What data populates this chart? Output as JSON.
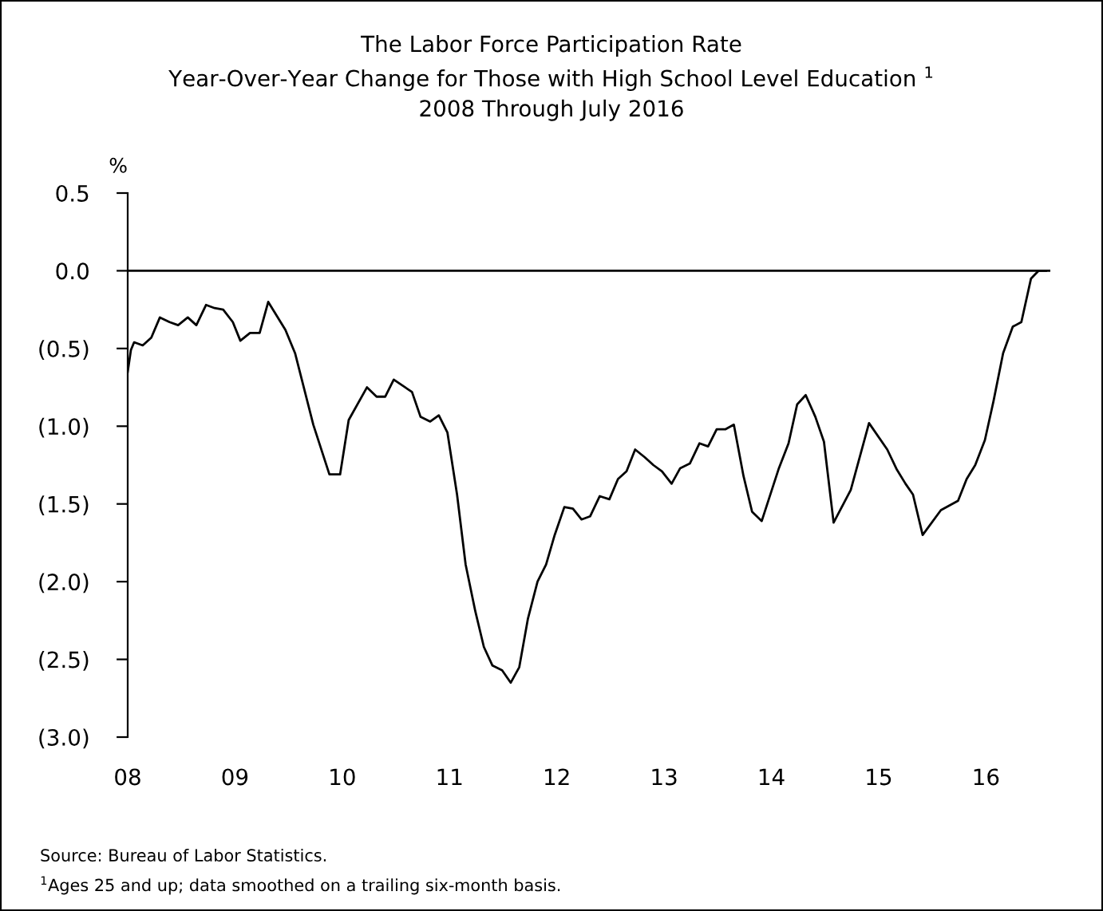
{
  "chart_data": {
    "type": "line",
    "title": "The Labor Force Participation Rate\nYear-Over-Year Change for Those with High School Level Education $^{1}$\n2008 Through July 2016",
    "ylabel": "%",
    "annotations": [
      "Source: Bureau of Labor Statistics.",
      "$^{1}$Ages 25 and up; data smoothed on a trailing six-month basis."
    ],
    "series": [
      {
        "color": "#000000",
        "x": [
          2008.0,
          2008.03,
          2008.06,
          2008.14,
          2008.22,
          2008.3,
          2008.39,
          2008.47,
          2008.56,
          2008.64,
          2008.73,
          2008.81,
          2008.89,
          2008.98,
          2009.05,
          2009.14,
          2009.23,
          2009.31,
          2009.47,
          2009.56,
          2009.73,
          2009.88,
          2009.98,
          2010.06,
          2010.23,
          2010.32,
          2010.4,
          2010.48,
          2010.65,
          2010.73,
          2010.82,
          2010.9,
          2010.98,
          2011.07,
          2011.15,
          2011.24,
          2011.32,
          2011.4,
          2011.49,
          2011.57,
          2011.65,
          2011.73,
          2011.82,
          2011.9,
          2011.98,
          2012.07,
          2012.15,
          2012.23,
          2012.31,
          2012.4,
          2012.49,
          2012.57,
          2012.65,
          2012.73,
          2012.82,
          2012.9,
          2012.98,
          2013.07,
          2013.15,
          2013.24,
          2013.33,
          2013.41,
          2013.49,
          2013.57,
          2013.65,
          2013.74,
          2013.82,
          2013.91,
          2014.07,
          2014.16,
          2014.24,
          2014.32,
          2014.41,
          2014.49,
          2014.58,
          2014.74,
          2014.91,
          2015.08,
          2015.17,
          2015.25,
          2015.32,
          2015.41,
          2015.58,
          2015.74,
          2015.82,
          2015.9,
          2015.99,
          2016.07,
          2016.16,
          2016.25,
          2016.33,
          2016.42,
          2016.49,
          2016.56
        ],
        "values": [
          -0.65,
          -0.51,
          -0.46,
          -0.48,
          -0.43,
          -0.3,
          -0.33,
          -0.35,
          -0.3,
          -0.35,
          -0.22,
          -0.24,
          -0.25,
          -0.33,
          -0.45,
          -0.4,
          -0.4,
          -0.2,
          -0.38,
          -0.53,
          -0.99,
          -1.31,
          -1.31,
          -0.96,
          -0.75,
          -0.81,
          -0.81,
          -0.7,
          -0.78,
          -0.94,
          -0.97,
          -0.93,
          -1.04,
          -1.44,
          -1.89,
          -2.19,
          -2.42,
          -2.54,
          -2.57,
          -2.65,
          -2.55,
          -2.24,
          -2.0,
          -1.89,
          -1.7,
          -1.52,
          -1.53,
          -1.6,
          -1.58,
          -1.45,
          -1.47,
          -1.34,
          -1.29,
          -1.15,
          -1.2,
          -1.25,
          -1.29,
          -1.37,
          -1.27,
          -1.24,
          -1.11,
          -1.13,
          -1.02,
          -1.02,
          -0.99,
          -1.32,
          -1.55,
          -1.61,
          -1.27,
          -1.11,
          -0.86,
          -0.8,
          -0.94,
          -1.1,
          -1.62,
          -1.41,
          -0.98,
          -1.15,
          -1.28,
          -1.37,
          -1.44,
          -1.7,
          -1.54,
          -1.48,
          -1.34,
          -1.25,
          -1.09,
          -0.84,
          -0.53,
          -0.36,
          -0.33,
          -0.05,
          0.0,
          0.0
        ]
      }
    ],
    "xlim": [
      2008.0,
      2016.6
    ],
    "xticks": [
      {
        "value": 2008,
        "label": "08"
      },
      {
        "value": 2009,
        "label": "09"
      },
      {
        "value": 2010,
        "label": "10"
      },
      {
        "value": 2011,
        "label": "11"
      },
      {
        "value": 2012,
        "label": "12"
      },
      {
        "value": 2013,
        "label": "13"
      },
      {
        "value": 2014,
        "label": "14"
      },
      {
        "value": 2015,
        "label": "15"
      },
      {
        "value": 2016,
        "label": "16"
      }
    ],
    "ylim": [
      -3.0,
      0.5
    ],
    "yticks": [
      {
        "value": 0.5,
        "label": "0.5"
      },
      {
        "value": 0.0,
        "label": "0.0"
      },
      {
        "value": -0.5,
        "label": "(0.5)"
      },
      {
        "value": -1.0,
        "label": "(1.0)"
      },
      {
        "value": -1.5,
        "label": "(1.5)"
      },
      {
        "value": -2.0,
        "label": "(2.0)"
      },
      {
        "value": -2.5,
        "label": "(2.5)"
      },
      {
        "value": -3.0,
        "label": "(3.0)"
      }
    ],
    "ref_lines": [
      {
        "axis": "y",
        "value": 0.0,
        "color": "#000000"
      }
    ],
    "grid": false,
    "legend": false,
    "marker": "none",
    "line_style": "solid"
  }
}
